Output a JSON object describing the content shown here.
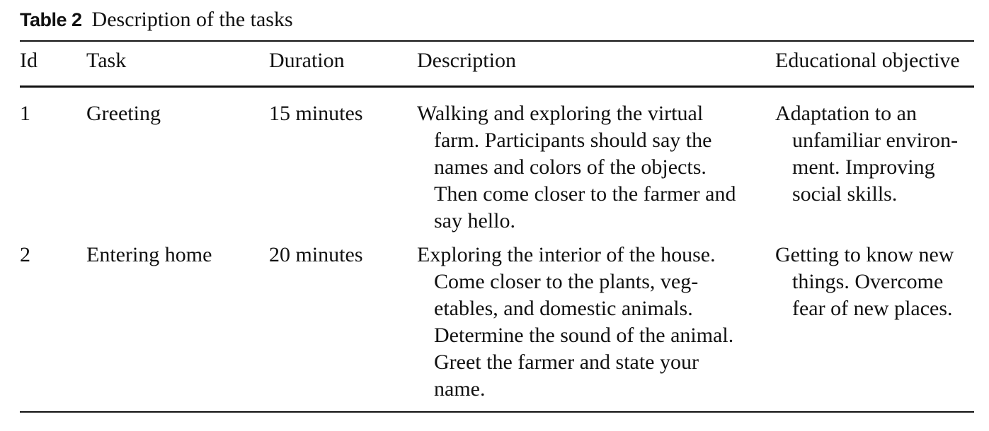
{
  "caption": {
    "label": "Table 2",
    "text": "Description of the tasks"
  },
  "table": {
    "headers": [
      "Id",
      "Task",
      "Duration",
      "Description",
      "Educational objective"
    ],
    "rows": [
      {
        "id": "1",
        "task": "Greeting",
        "duration": "15 minutes",
        "description_lines": [
          "Walking and exploring the virtual",
          "farm. Participants should say the",
          "names and colors of the objects.",
          "Then come closer to the farmer and",
          "say hello."
        ],
        "objective_lines": [
          "Adaptation to an",
          "unfamiliar environ-",
          "ment. Improving",
          "social skills."
        ]
      },
      {
        "id": "2",
        "task": "Entering home",
        "duration": "20 minutes",
        "description_lines": [
          "Exploring the interior of the house.",
          "Come closer to the plants, veg-",
          "etables, and domestic animals.",
          "Determine the sound of the animal.",
          "Greet the farmer and state your",
          "name."
        ],
        "objective_lines": [
          "Getting to know new",
          "things. Overcome",
          "fear of new places."
        ]
      }
    ]
  }
}
